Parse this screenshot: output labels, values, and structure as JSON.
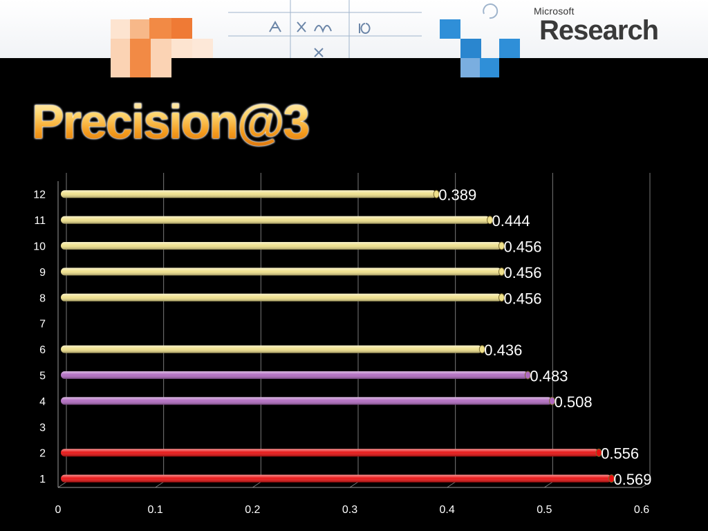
{
  "header": {
    "logo_small": "Microsoft",
    "logo_big": "Research"
  },
  "title": "Precision@3",
  "chart_data": {
    "type": "bar",
    "orientation": "horizontal",
    "title": "Precision@3",
    "xlabel": "",
    "ylabel": "",
    "xlim": [
      0,
      0.6
    ],
    "x_ticks": [
      0,
      0.1,
      0.2,
      0.3,
      0.4,
      0.5,
      0.6
    ],
    "x_tick_labels": [
      "0",
      "0.1",
      "0.2",
      "0.3",
      "0.4",
      "0.5",
      "0.6"
    ],
    "categories": [
      "1",
      "2",
      "3",
      "4",
      "5",
      "6",
      "7",
      "8",
      "9",
      "10",
      "11",
      "12"
    ],
    "values": [
      0.569,
      0.556,
      null,
      0.508,
      0.483,
      0.436,
      null,
      0.456,
      0.456,
      0.456,
      0.444,
      0.389
    ],
    "value_labels": [
      "0.569",
      "0.556",
      "",
      "0.508",
      "0.483",
      "0.436",
      "",
      "0.456",
      "0.456",
      "0.456",
      "0.444",
      "0.389"
    ],
    "bar_colors": [
      "#e81010",
      "#e81010",
      "",
      "#b06ac0",
      "#b06ac0",
      "#efe08a",
      "",
      "#efe08a",
      "#efe08a",
      "#efe08a",
      "#efe08a",
      "#efe08a"
    ],
    "grid": true,
    "legend": "none"
  }
}
